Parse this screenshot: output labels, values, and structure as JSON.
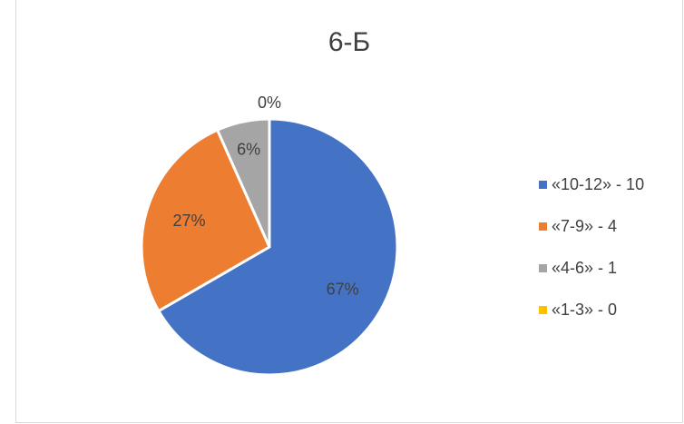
{
  "chart_data": {
    "type": "pie",
    "title": "6-Б",
    "categories": [
      "«10-12» - 10",
      "«7-9» - 4",
      "«4-6» - 1",
      "«1-3» - 0"
    ],
    "values": [
      10,
      4,
      1,
      0
    ],
    "data_labels": [
      "67%",
      "27%",
      "6%",
      "0%"
    ],
    "colors": [
      "#4472C4",
      "#ED7D31",
      "#A5A5A5",
      "#FFC000"
    ],
    "legend_position": "right"
  }
}
